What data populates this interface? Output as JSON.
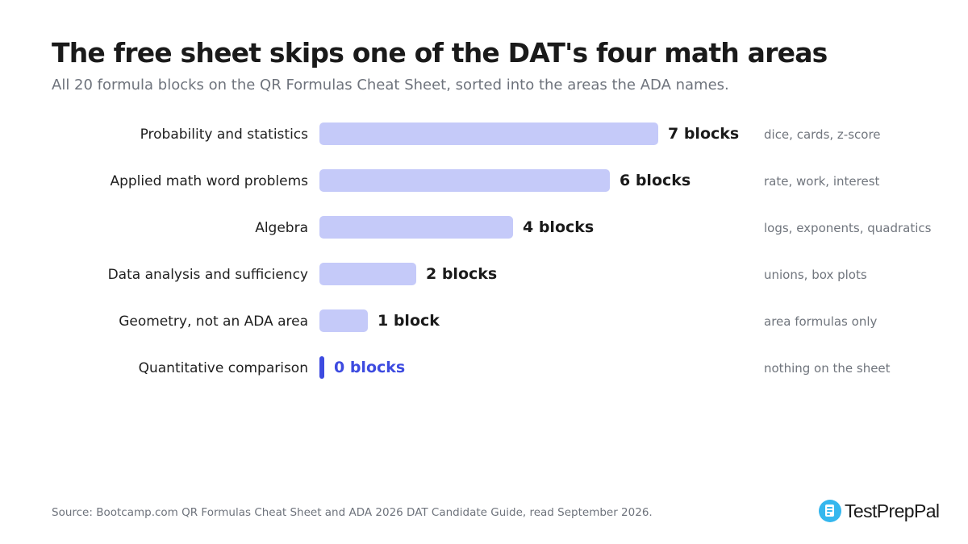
{
  "title": "The free sheet skips one of the DAT's four math areas",
  "subtitle": "All 20 formula blocks on the QR Formulas Cheat Sheet, sorted into the areas the ADA names.",
  "source": "Source: Bootcamp.com QR Formulas Cheat Sheet and ADA 2026 DAT Candidate Guide, read September 2026.",
  "brand": {
    "name": "TestPrepPal",
    "icon": "document-icon",
    "icon_color": "#35b7ee"
  },
  "colors": {
    "bar": "#c5caf9",
    "highlight_bar": "#3d4be0",
    "highlight_label": "#3d4be0",
    "value_label": "#1a1a1a"
  },
  "chart_data": {
    "type": "bar",
    "orientation": "horizontal",
    "title": "The free sheet skips one of the DAT's four math areas",
    "subtitle": "All 20 formula blocks on the QR Formulas Cheat Sheet, sorted into the areas the ADA names.",
    "categories": [
      "Probability and statistics",
      "Applied math word problems",
      "Algebra",
      "Data analysis and sufficiency",
      "Geometry, not an ADA area",
      "Quantitative comparison"
    ],
    "values": [
      7,
      6,
      4,
      2,
      1,
      0
    ],
    "value_labels": [
      "7 blocks",
      "6 blocks",
      "4 blocks",
      "2 blocks",
      "1 block",
      "0 blocks"
    ],
    "notes": [
      "dice, cards, z-score",
      "rate, work, interest",
      "logs, exponents, quadratics",
      "unions, box plots",
      "area formulas only",
      "nothing on the sheet"
    ],
    "highlight_index": 5,
    "xlim": [
      0,
      7
    ],
    "grid": false,
    "legend": "none"
  }
}
